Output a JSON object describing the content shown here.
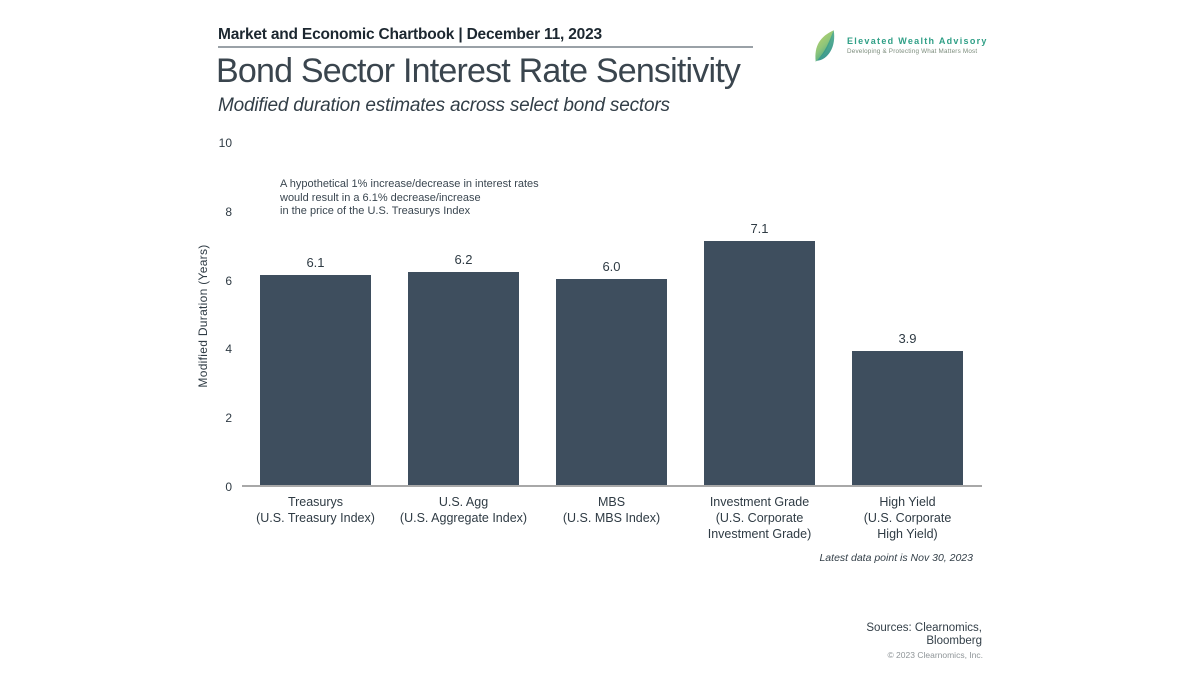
{
  "header": {
    "chartbook_label": "Market and Economic Chartbook | December 11, 2023"
  },
  "logo": {
    "name": "Elevated Wealth Advisory",
    "tagline": "Developing & Protecting What Matters Most",
    "brand_color": "#2f9f86",
    "leaf_green": "#c9d765",
    "leaf_teal": "#35a28c"
  },
  "title": "Bond Sector Interest Rate Sensitivity",
  "subtitle": "Modified duration estimates across select bond sectors",
  "chart_data": {
    "type": "bar",
    "title": "Bond Sector Interest Rate Sensitivity",
    "subtitle": "Modified duration estimates across select bond sectors",
    "categories": [
      "Treasurys",
      "U.S. Agg",
      "MBS",
      "Investment Grade",
      "High Yield"
    ],
    "category_sublines": [
      [
        "(U.S. Treasury Index)"
      ],
      [
        "(U.S. Aggregate Index)"
      ],
      [
        "(U.S. MBS Index)"
      ],
      [
        "(U.S. Corporate",
        "Investment Grade)"
      ],
      [
        "(U.S. Corporate",
        "High Yield)"
      ]
    ],
    "values": [
      6.1,
      6.2,
      6.0,
      7.1,
      3.9
    ],
    "value_labels": [
      "6.1",
      "6.2",
      "6.0",
      "7.1",
      "3.9"
    ],
    "xlabel": "",
    "ylabel": "Modified Duration (Years)",
    "ylim": [
      0,
      10
    ],
    "yticks": [
      0,
      2,
      4,
      6,
      8,
      10
    ],
    "grid": false,
    "legend": "none",
    "bar_color": "#3e4e5e",
    "axis_line_color": "#a8a8a8",
    "annotation": [
      "A hypothetical 1% increase/decrease in interest rates",
      "would result in a 6.1% decrease/increase",
      "in the price of the U.S. Treasurys Index"
    ],
    "footnote": "Latest data point is Nov 30, 2023"
  },
  "footer": {
    "sources_lines": [
      "Sources: Clearnomics,",
      "Bloomberg"
    ],
    "copyright": "© 2023 Clearnomics, Inc."
  }
}
